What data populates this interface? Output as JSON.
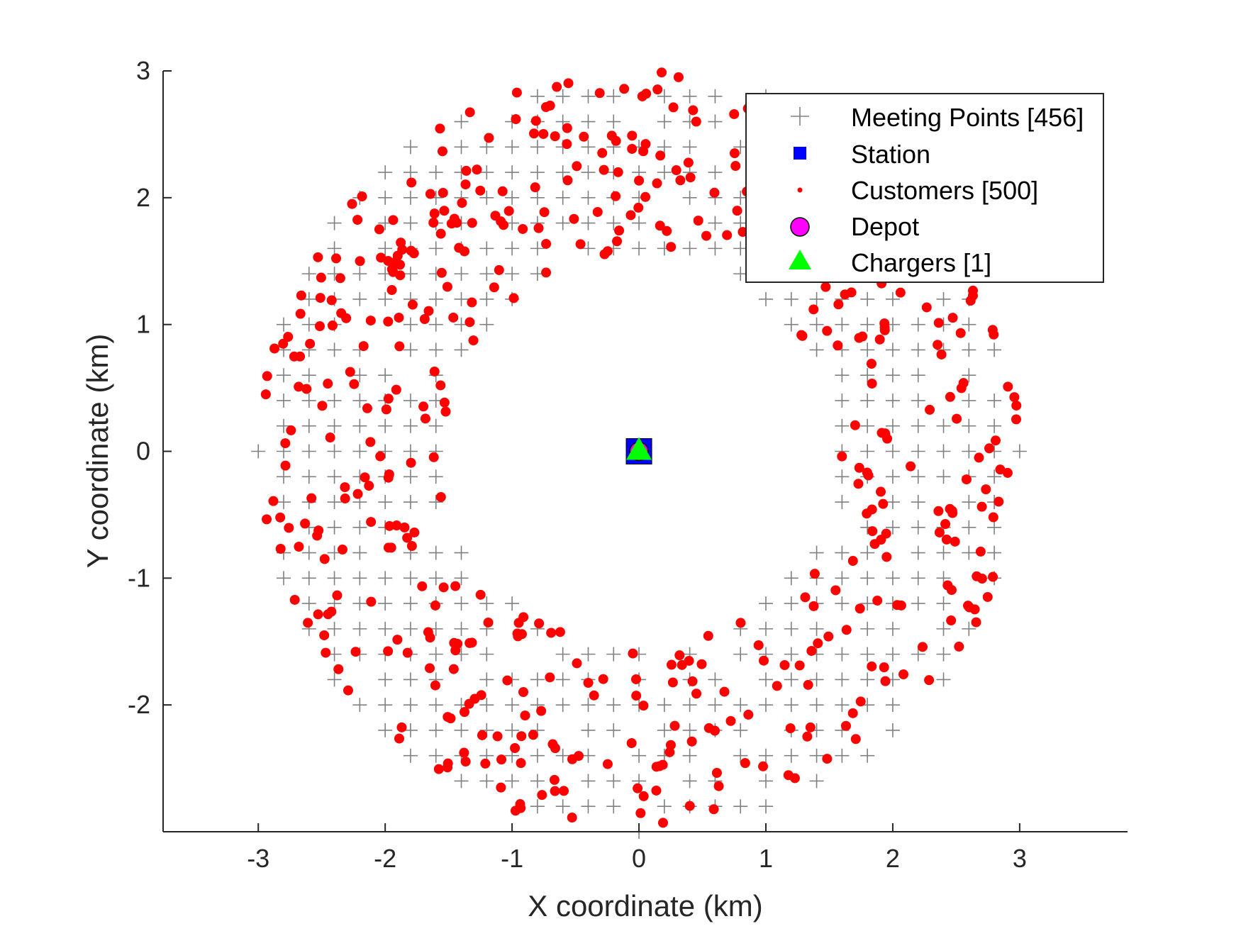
{
  "chart_data": {
    "type": "scatter",
    "title": "",
    "xlabel": "X coordinate (km)",
    "ylabel": "Y coordinate (km)",
    "xlim": [
      -3.75,
      3.85
    ],
    "ylim": [
      -3.0,
      3.0
    ],
    "xticks": [
      -3,
      -2,
      -1,
      0,
      1,
      2,
      3
    ],
    "yticks": [
      -2,
      -1,
      0,
      1,
      2,
      3
    ],
    "xtick_labels": [
      "-3",
      "-2",
      "-1",
      "0",
      "1",
      "2",
      "3"
    ],
    "ytick_labels": [
      "-2",
      "-1",
      "0",
      "1",
      "2",
      "3"
    ],
    "grid": false,
    "legend_position": "top-right",
    "ring_inner_radius_km": 1.55,
    "ring_outer_radius_km": 3.0,
    "meeting_grid_spacing_km": 0.2,
    "series": [
      {
        "name": "Meeting Points [456]",
        "marker": "plus",
        "color": "#808080",
        "count": 456
      },
      {
        "name": "Station",
        "marker": "square",
        "color": "#0000ff",
        "points": [
          [
            0,
            0
          ]
        ]
      },
      {
        "name": "Customers [500]",
        "marker": "dot",
        "color": "#ff0000",
        "count": 500
      },
      {
        "name": "Depot",
        "marker": "circle",
        "color": "#ff00ff",
        "points": [
          [
            0,
            0
          ]
        ]
      },
      {
        "name": "Chargers [1]",
        "marker": "triangle",
        "color": "#00ff00",
        "points": [
          [
            0,
            0
          ]
        ]
      }
    ]
  }
}
